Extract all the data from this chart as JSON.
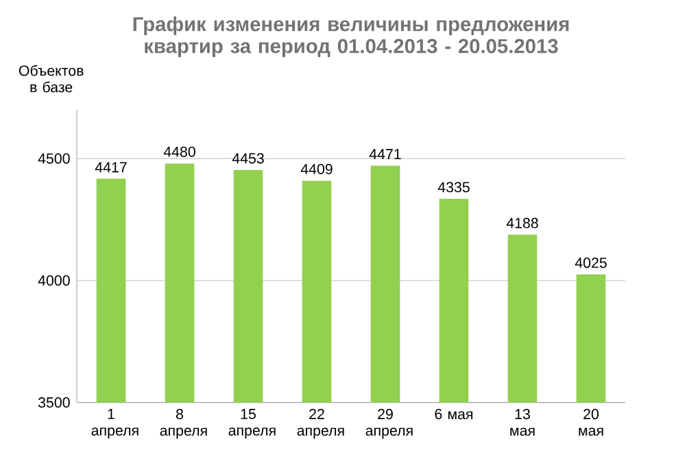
{
  "chart_data": {
    "type": "bar",
    "title": "График изменения величины предложения квартир за период 01.04.2013 - 20.05.2013",
    "ylabel": "Объектов в базе",
    "categories": [
      "1 апреля",
      "8 апреля",
      "15 апреля",
      "22 апреля",
      "29 апреля",
      "6 мая",
      "13 мая",
      "20 мая"
    ],
    "values": [
      4417,
      4480,
      4453,
      4409,
      4471,
      4335,
      4188,
      4025
    ],
    "color": "#92d050",
    "ylim": [
      3500,
      4700
    ],
    "yticks": [
      3500,
      4000,
      4500
    ],
    "grid": "y",
    "data_labels": true
  }
}
